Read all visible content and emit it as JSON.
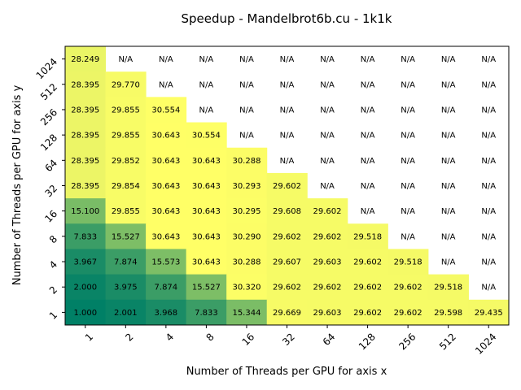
{
  "chart_data": {
    "type": "heatmap",
    "title": "Speedup - Mandelbrot6b.cu - 1k1k",
    "xlabel": "Number of Threads per GPU for axis x",
    "ylabel": "Number of Threads per GPU for axis y",
    "x_ticks": [
      "1",
      "2",
      "4",
      "8",
      "16",
      "32",
      "64",
      "128",
      "256",
      "512",
      "1024"
    ],
    "y_ticks": [
      "1",
      "2",
      "4",
      "8",
      "16",
      "32",
      "64",
      "128",
      "256",
      "512",
      "1024"
    ],
    "na_label": "N/A",
    "colormap": "summer",
    "vmin": 1.0,
    "vmax": 30.643,
    "rows": [
      {
        "y": "1024",
        "values": [
          28.249,
          null,
          null,
          null,
          null,
          null,
          null,
          null,
          null,
          null,
          null
        ]
      },
      {
        "y": "512",
        "values": [
          28.395,
          29.77,
          null,
          null,
          null,
          null,
          null,
          null,
          null,
          null,
          null
        ]
      },
      {
        "y": "256",
        "values": [
          28.395,
          29.855,
          30.554,
          null,
          null,
          null,
          null,
          null,
          null,
          null,
          null
        ]
      },
      {
        "y": "128",
        "values": [
          28.395,
          29.855,
          30.643,
          30.554,
          null,
          null,
          null,
          null,
          null,
          null,
          null
        ]
      },
      {
        "y": "64",
        "values": [
          28.395,
          29.852,
          30.643,
          30.643,
          30.288,
          null,
          null,
          null,
          null,
          null,
          null
        ]
      },
      {
        "y": "32",
        "values": [
          28.395,
          29.854,
          30.643,
          30.643,
          30.293,
          29.602,
          null,
          null,
          null,
          null,
          null
        ]
      },
      {
        "y": "16",
        "values": [
          15.1,
          29.855,
          30.643,
          30.643,
          30.295,
          29.608,
          29.602,
          null,
          null,
          null,
          null
        ]
      },
      {
        "y": "8",
        "values": [
          7.833,
          15.527,
          30.643,
          30.643,
          30.29,
          29.602,
          29.602,
          29.518,
          null,
          null,
          null
        ]
      },
      {
        "y": "4",
        "values": [
          3.967,
          7.874,
          15.573,
          30.643,
          30.288,
          29.607,
          29.603,
          29.602,
          29.518,
          null,
          null
        ]
      },
      {
        "y": "2",
        "values": [
          2.0,
          3.975,
          7.874,
          15.527,
          30.32,
          29.602,
          29.602,
          29.602,
          29.602,
          29.518,
          null
        ]
      },
      {
        "y": "1",
        "values": [
          1.0,
          2.001,
          3.968,
          7.833,
          15.344,
          29.669,
          29.603,
          29.602,
          29.602,
          29.598,
          29.435
        ]
      }
    ]
  }
}
